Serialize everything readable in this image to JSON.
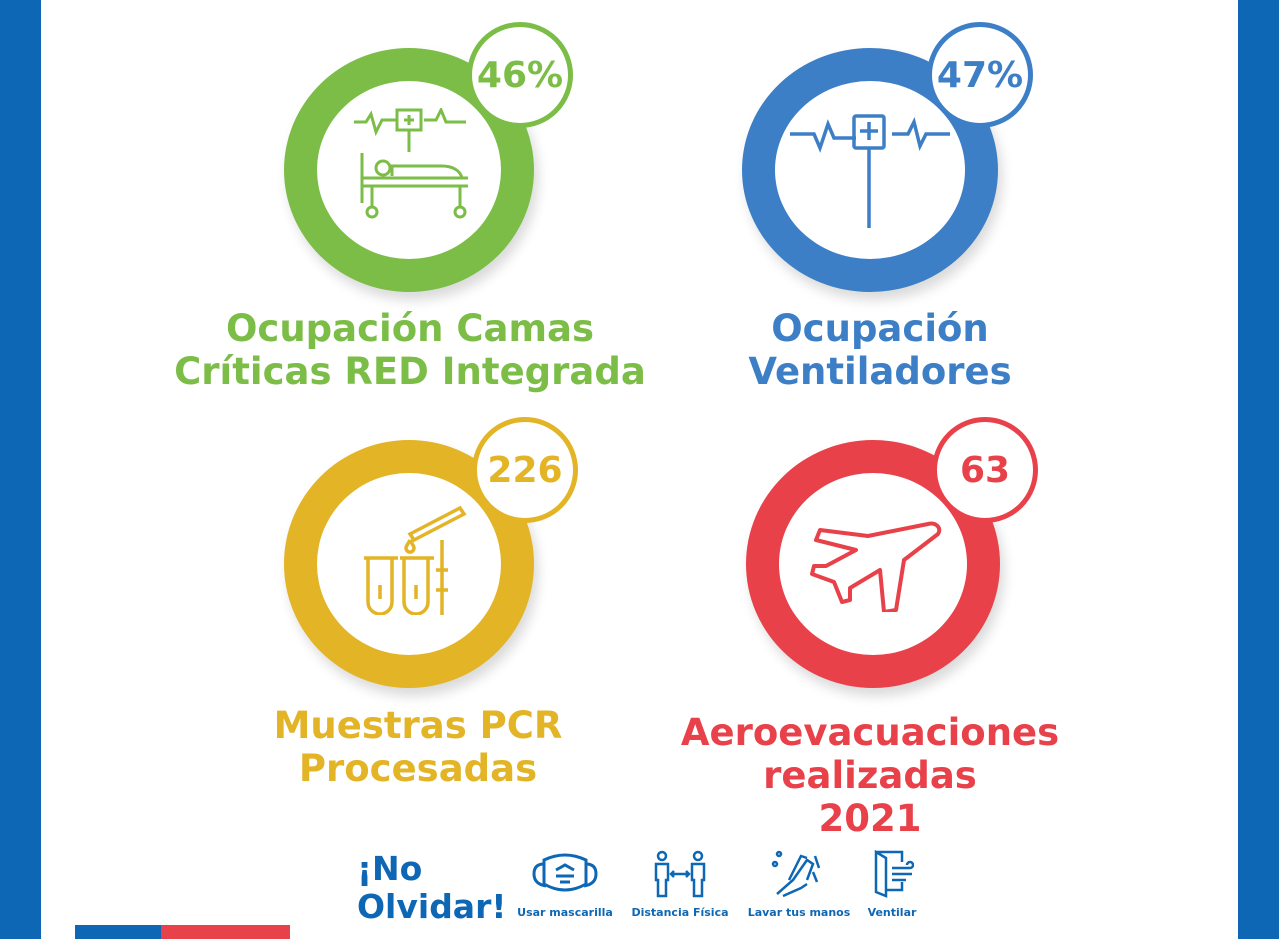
{
  "colors": {
    "green": "#7bbd47",
    "blue": "#3d7fc6",
    "yellow": "#e2b426",
    "red": "#e8414a",
    "brand_blue": "#0e67b4",
    "flag_red": "#e8414a"
  },
  "indicators": [
    {
      "value": "46%",
      "title_lines": [
        "Ocupación Camas",
        "Críticas RED Integrada"
      ],
      "icon": "hospital-bed-icon"
    },
    {
      "value": "47%",
      "title_lines": [
        "Ocupación",
        "Ventiladores"
      ],
      "icon": "iv-drip-heartbeat-icon"
    },
    {
      "value": "226",
      "title_lines": [
        "Muestras PCR",
        "Procesadas"
      ],
      "icon": "test-tubes-icon"
    },
    {
      "value": "63",
      "title_lines": [
        "Aeroevacuaciones",
        "realizadas",
        "2021"
      ],
      "icon": "airplane-icon"
    }
  ],
  "footer": {
    "title_lines": [
      "¡No",
      "Olvidar!"
    ],
    "tips": [
      {
        "label": "Usar mascarilla",
        "icon": "mask-icon"
      },
      {
        "label": "Distancia Física",
        "icon": "distance-icon"
      },
      {
        "label": "Lavar tus manos",
        "icon": "hand-wash-icon"
      },
      {
        "label": "Ventilar",
        "icon": "window-ventilate-icon"
      }
    ]
  }
}
